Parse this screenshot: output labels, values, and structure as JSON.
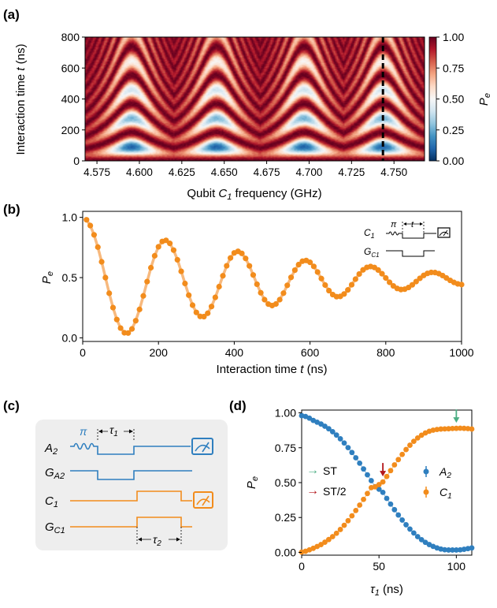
{
  "panel_labels": {
    "a": "(a)",
    "b": "(b)",
    "c": "(c)",
    "d": "(d)"
  },
  "colors": {
    "blue": "#2f7fbf",
    "orange": "#f28c1c",
    "orange_fit": "#f7b97e",
    "green": "#4cae84",
    "red": "#b3171c"
  },
  "panel_a": {
    "ylabel_pre": "Interaction time ",
    "ylabel_var": "t",
    "ylabel_post": " (ns)",
    "xlabel_pre": "Qubit ",
    "xlabel_var": "C",
    "xlabel_sub": "1",
    "xlabel_post": " frequency (GHz)",
    "colorbar_label": "P",
    "colorbar_label_sub": "e"
  },
  "panel_b": {
    "ylabel": "P",
    "ylabel_sub": "e",
    "xlabel_pre": "Interaction time ",
    "xlabel_var": "t",
    "xlabel_post": " (ns)",
    "inset": {
      "pi": "π",
      "t": "t",
      "c1": "C",
      "c1_sub": "1",
      "gc1": "G",
      "gc1_sub": "C1"
    }
  },
  "panel_c": {
    "pi_label": "π",
    "tau1": "τ",
    "tau1_sub": "1",
    "tau2": "τ",
    "tau2_sub": "2",
    "rows": [
      {
        "label": "A",
        "sub": "2"
      },
      {
        "label": "G",
        "sub": "A2"
      },
      {
        "label": "C",
        "sub": "1"
      },
      {
        "label": "G",
        "sub": "C1"
      }
    ]
  },
  "panel_d": {
    "ylabel": "P",
    "ylabel_sub": "e",
    "xlabel": "τ",
    "xlabel_sub": "1",
    "xlabel_post": " (ns)",
    "legend_left": [
      {
        "arrow": "→",
        "label": "ST",
        "color": "#4cae84"
      },
      {
        "arrow": "→",
        "label": "ST/2",
        "color": "#b3171c"
      }
    ],
    "legend_right": [
      {
        "label": "A",
        "sub": "2",
        "color": "#2f7fbf"
      },
      {
        "label": "C",
        "sub": "1",
        "color": "#f28c1c"
      }
    ]
  },
  "chart_data": [
    {
      "type": "heatmap",
      "panel": "(a)",
      "xlabel": "Qubit C1 frequency (GHz)",
      "ylabel": "Interaction time t (ns)",
      "xlim": [
        4.568,
        4.768
      ],
      "ylim": [
        0,
        800
      ],
      "xticks": [
        4.575,
        4.6,
        4.625,
        4.65,
        4.675,
        4.7,
        4.725,
        4.75
      ],
      "xtick_labels": [
        "4.575",
        "4.600",
        "4.625",
        "4.650",
        "4.675",
        "4.700",
        "4.725",
        "4.750"
      ],
      "yticks": [
        0,
        200,
        400,
        600,
        800
      ],
      "colorbar": {
        "label": "Pe",
        "range": [
          0,
          1
        ],
        "ticks": [
          0,
          0.25,
          0.5,
          0.75,
          1.0
        ],
        "tick_labels": [
          "0.00",
          "0.25",
          "0.50",
          "0.75",
          "1.00"
        ],
        "colormap": "RdBu_r"
      },
      "resonance_centers_GHz": [
        4.5955,
        4.6455,
        4.697,
        4.7435
      ],
      "chevron_period_ns": 185,
      "dashed_line_GHz": 4.7435
    },
    {
      "type": "scatter",
      "panel": "(b)",
      "xlabel": "Interaction time t (ns)",
      "ylabel": "Pe",
      "xlim": [
        0,
        1000
      ],
      "ylim": [
        -0.03,
        1.05
      ],
      "xticks": [
        0,
        200,
        400,
        600,
        800,
        1000
      ],
      "yticks": [
        0.0,
        0.5,
        1.0
      ],
      "ytick_labels": [
        "0.0",
        "0.5",
        "1.0"
      ],
      "x_spacing_ns": 10,
      "x": [
        10,
        20,
        30,
        40,
        50,
        60,
        70,
        80,
        90,
        100,
        110,
        120,
        130,
        140,
        150,
        160,
        170,
        180,
        190,
        200,
        210,
        220,
        230,
        240,
        250,
        260,
        270,
        280,
        290,
        300,
        310,
        320,
        330,
        340,
        350,
        360,
        370,
        380,
        390,
        400,
        410,
        420,
        430,
        440,
        450,
        460,
        470,
        480,
        490,
        500,
        510,
        520,
        530,
        540,
        550,
        560,
        570,
        580,
        590,
        600,
        610,
        620,
        630,
        640,
        650,
        660,
        670,
        680,
        690,
        700,
        710,
        720,
        730,
        740,
        750,
        760,
        770,
        780,
        790,
        800,
        810,
        820,
        830,
        840,
        850,
        860,
        870,
        880,
        890,
        900,
        910,
        920,
        930,
        940,
        950,
        960,
        970,
        980,
        990,
        1000
      ],
      "values": [
        0.98,
        0.932,
        0.855,
        0.753,
        0.631,
        0.5,
        0.37,
        0.251,
        0.152,
        0.081,
        0.042,
        0.04,
        0.074,
        0.142,
        0.236,
        0.348,
        0.467,
        0.582,
        0.681,
        0.756,
        0.8,
        0.809,
        0.784,
        0.728,
        0.648,
        0.552,
        0.451,
        0.354,
        0.271,
        0.211,
        0.178,
        0.176,
        0.204,
        0.26,
        0.336,
        0.425,
        0.515,
        0.598,
        0.663,
        0.705,
        0.718,
        0.701,
        0.659,
        0.597,
        0.522,
        0.445,
        0.374,
        0.317,
        0.28,
        0.268,
        0.281,
        0.317,
        0.371,
        0.436,
        0.502,
        0.562,
        0.608,
        0.636,
        0.642,
        0.627,
        0.593,
        0.546,
        0.492,
        0.438,
        0.392,
        0.359,
        0.342,
        0.344,
        0.364,
        0.398,
        0.441,
        0.487,
        0.53,
        0.564,
        0.585,
        0.592,
        0.584,
        0.563,
        0.532,
        0.497,
        0.461,
        0.431,
        0.41,
        0.401,
        0.404,
        0.418,
        0.44,
        0.467,
        0.494,
        0.518,
        0.535,
        0.543,
        0.542,
        0.533,
        0.517,
        0.497,
        0.477,
        0.46,
        0.448,
        0.442
      ],
      "fit_curve": true
    },
    {
      "type": "scatter",
      "panel": "(d)",
      "xlabel": "τ1 (ns)",
      "ylabel": "Pe",
      "xlim": [
        0,
        110
      ],
      "ylim": [
        -0.02,
        1.02
      ],
      "xticks": [
        0,
        50,
        100
      ],
      "yticks": [
        0.0,
        0.25,
        0.5,
        0.75,
        1.0
      ],
      "ytick_labels": [
        "0.00",
        "0.25",
        "0.50",
        "0.75",
        "1.00"
      ],
      "x": [
        0,
        2.5,
        5,
        7.5,
        10,
        12.5,
        15,
        17.5,
        20,
        22.5,
        25,
        27.5,
        30,
        32.5,
        35,
        37.5,
        40,
        42.5,
        45,
        47.5,
        50,
        52.5,
        55,
        57.5,
        60,
        62.5,
        65,
        67.5,
        70,
        72.5,
        75,
        77.5,
        80,
        82.5,
        85,
        87.5,
        90,
        92.5,
        95,
        97.5,
        100,
        102.5,
        105,
        107.5,
        110
      ],
      "series": [
        {
          "name": "A2",
          "values": [
            0.98,
            0.974,
            0.962,
            0.946,
            0.933,
            0.92,
            0.904,
            0.886,
            0.865,
            0.841,
            0.814,
            0.784,
            0.751,
            0.716,
            0.678,
            0.639,
            0.598,
            0.556,
            0.514,
            0.471,
            0.453,
            0.43,
            0.387,
            0.346,
            0.306,
            0.268,
            0.232,
            0.198,
            0.167,
            0.139,
            0.113,
            0.091,
            0.072,
            0.056,
            0.043,
            0.032,
            0.024,
            0.019,
            0.017,
            0.017,
            0.017,
            0.018,
            0.022,
            0.027,
            0.032
          ]
        },
        {
          "name": "C1",
          "values": [
            0.002,
            0.008,
            0.018,
            0.029,
            0.042,
            0.056,
            0.073,
            0.092,
            0.113,
            0.137,
            0.164,
            0.194,
            0.227,
            0.262,
            0.3,
            0.339,
            0.38,
            0.422,
            0.464,
            0.47,
            0.486,
            0.505,
            0.544,
            0.586,
            0.627,
            0.665,
            0.702,
            0.737,
            0.768,
            0.796,
            0.82,
            0.84,
            0.856,
            0.868,
            0.876,
            0.881,
            0.884,
            0.885,
            0.886,
            0.888,
            0.889,
            0.89,
            0.889,
            0.887,
            0.884
          ]
        }
      ],
      "annotations": [
        {
          "label": "ST",
          "x": 100,
          "arrow": "down",
          "color": "#4cae84"
        },
        {
          "label": "ST/2",
          "x": 52.5,
          "arrow": "down",
          "color": "#b3171c"
        }
      ]
    },
    {
      "type": "diagram",
      "panel": "(c)",
      "description_rows": [
        "A2",
        "GA2",
        "C1",
        "GC1"
      ],
      "intervals": [
        "τ1",
        "τ2"
      ]
    }
  ]
}
